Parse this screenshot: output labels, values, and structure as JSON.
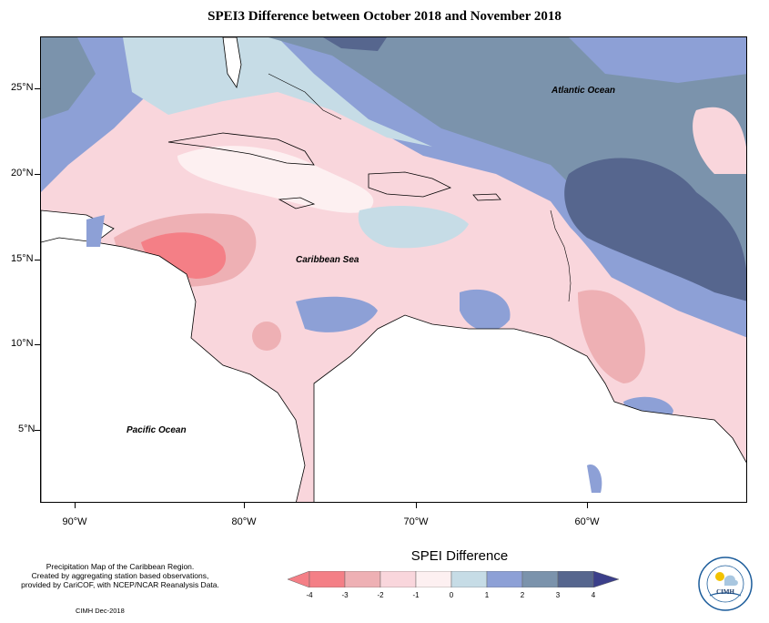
{
  "map": {
    "title": "SPEI3 Difference between October 2018 and November 2018",
    "y_labels": [
      "25°N",
      "20°N",
      "15°N",
      "10°N",
      "5°N"
    ],
    "x_labels": [
      "90°W",
      "80°W",
      "70°W",
      "60°W"
    ],
    "ocean_labels": {
      "atlantic": "Atlantic Ocean",
      "caribbean": "Caribbean Sea",
      "pacific": "Pacific Ocean"
    },
    "credit": {
      "line1": "Precipitation Map of the Caribbean Region.",
      "line2": "Created by aggregating station based observations,",
      "line3": "provided by CariCOF, with NCEP/NCAR Reanalysis Data.",
      "stamp": "CIMH Dec-2018"
    },
    "logo": {
      "text": "CIMH"
    }
  },
  "legend": {
    "title": "SPEI Difference",
    "labels": [
      "-4",
      "-3",
      "-2",
      "-1",
      "0",
      "1",
      "2",
      "3",
      "4"
    ],
    "colors": [
      "#f47f86",
      "#eeb0b4",
      "#f9d6dc",
      "#fdf0f1",
      "#c6dce6",
      "#8da0d6",
      "#7b93ac",
      "#56668e"
    ],
    "end_colors": {
      "low": "#f47f86",
      "high": "#3b3f8a"
    }
  }
}
